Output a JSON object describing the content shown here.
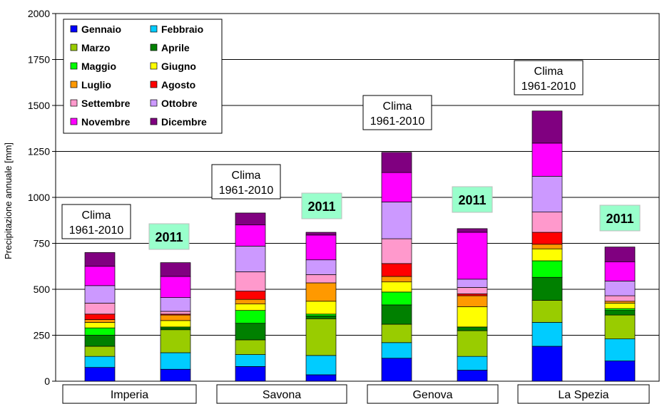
{
  "chart_data": {
    "type": "bar",
    "stacked": true,
    "ylabel": "Precipitazione annuale [mm]",
    "ylim": [
      0,
      2000
    ],
    "yticks": [
      0,
      250,
      500,
      750,
      1000,
      1250,
      1500,
      1750,
      2000
    ],
    "grid": true,
    "legend_position": "top-left",
    "groups": [
      "Imperia",
      "Savona",
      "Genova",
      "La Spezia"
    ],
    "bar_labels": {
      "clima": [
        "Clima",
        "1961-2010"
      ],
      "year": "2011"
    },
    "series": [
      {
        "name": "Gennaio",
        "color": "#0000FF"
      },
      {
        "name": "Febbraio",
        "color": "#00CCFF"
      },
      {
        "name": "Marzo",
        "color": "#99CC00"
      },
      {
        "name": "Aprile",
        "color": "#008000"
      },
      {
        "name": "Maggio",
        "color": "#00FF00"
      },
      {
        "name": "Giugno",
        "color": "#FFFF00"
      },
      {
        "name": "Luglio",
        "color": "#FF9900"
      },
      {
        "name": "Agosto",
        "color": "#FF0000"
      },
      {
        "name": "Settembre",
        "color": "#FF99CC"
      },
      {
        "name": "Ottobre",
        "color": "#CC99FF"
      },
      {
        "name": "Novembre",
        "color": "#FF00FF"
      },
      {
        "name": "Dicembre",
        "color": "#800080"
      }
    ],
    "bars": [
      {
        "group": "Imperia",
        "label": "clima",
        "values": [
          75,
          60,
          55,
          60,
          40,
          30,
          15,
          30,
          60,
          95,
          105,
          75
        ]
      },
      {
        "group": "Imperia",
        "label": "2011",
        "values": [
          65,
          90,
          125,
          10,
          5,
          35,
          30,
          5,
          15,
          75,
          115,
          75
        ]
      },
      {
        "group": "Savona",
        "label": "clima",
        "values": [
          80,
          65,
          80,
          90,
          70,
          35,
          25,
          45,
          105,
          140,
          115,
          65
        ]
      },
      {
        "group": "Savona",
        "label": "2011",
        "values": [
          35,
          105,
          200,
          15,
          10,
          70,
          100,
          0,
          45,
          80,
          135,
          15
        ]
      },
      {
        "group": "Genova",
        "label": "clima",
        "values": [
          125,
          85,
          100,
          105,
          70,
          55,
          30,
          70,
          135,
          200,
          160,
          110
        ]
      },
      {
        "group": "Genova",
        "label": "2011",
        "values": [
          60,
          75,
          140,
          20,
          0,
          110,
          60,
          10,
          35,
          45,
          255,
          20
        ]
      },
      {
        "group": "La Spezia",
        "label": "clima",
        "values": [
          190,
          130,
          120,
          125,
          90,
          65,
          25,
          65,
          110,
          195,
          180,
          175
        ]
      },
      {
        "group": "La Spezia",
        "label": "2011",
        "values": [
          110,
          120,
          130,
          25,
          10,
          30,
          10,
          0,
          30,
          80,
          105,
          80
        ]
      }
    ]
  }
}
